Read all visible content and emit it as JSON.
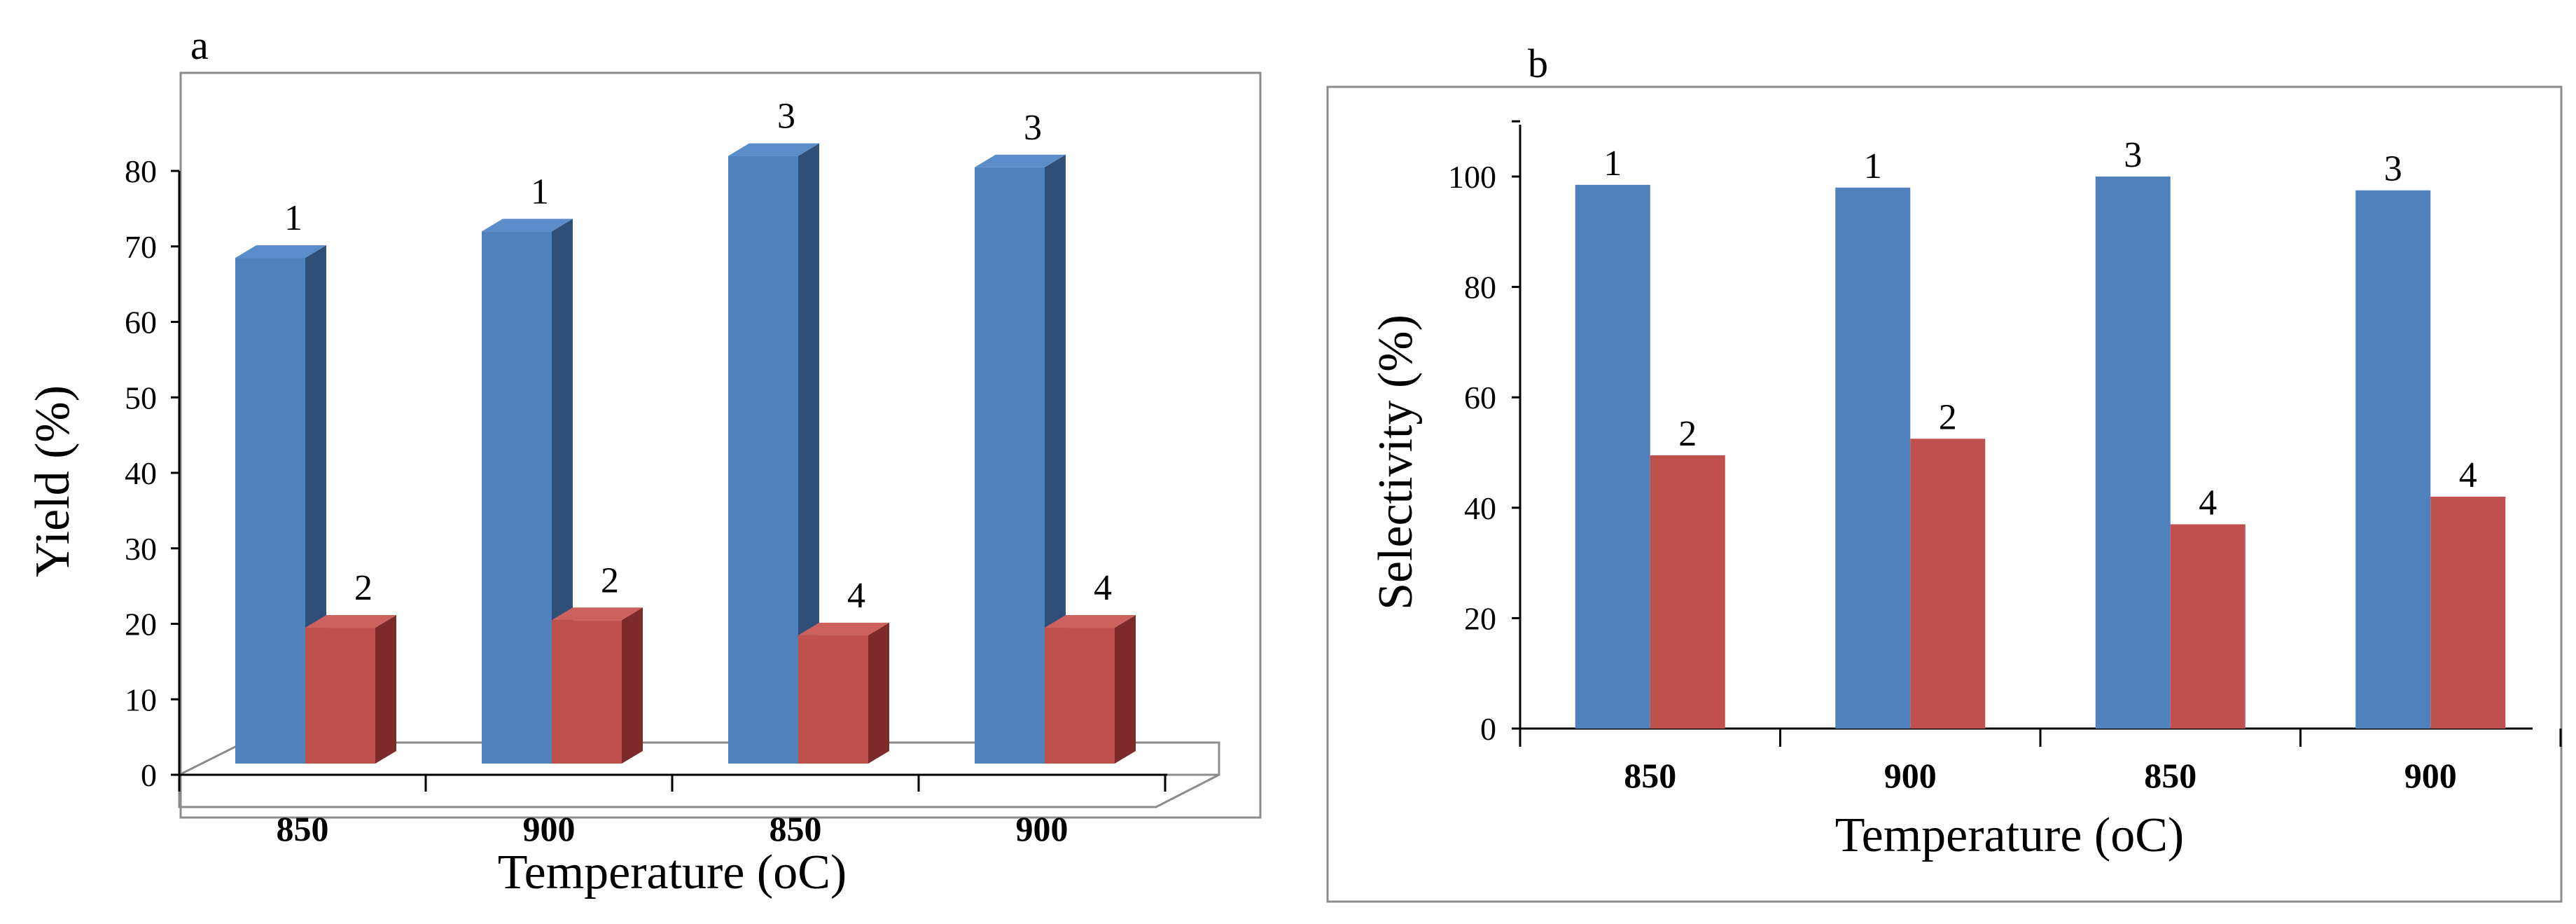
{
  "colors": {
    "blue_front": "#4f81bd",
    "blue_top": "#5b8dcb",
    "blue_side": "#2f4f78",
    "red_front": "#c0504d",
    "red_top": "#cc615d",
    "red_side": "#7c2b2a"
  },
  "chart_data": [
    {
      "panel": "a",
      "type": "bar",
      "style": "3d-clustered-column",
      "categories": [
        "850",
        "900",
        "850",
        "900"
      ],
      "xlabel": "Temperature (oC)",
      "ylabel": "Yield (%)",
      "ylim": [
        0,
        80
      ],
      "yticks": [
        "0",
        "10",
        "20",
        "30",
        "40",
        "50",
        "60",
        "70",
        "80"
      ],
      "grid": false,
      "series": [
        {
          "name": "blue",
          "color": "#4f81bd",
          "values": [
            67,
            70.5,
            80.5,
            79
          ],
          "labels": [
            "1",
            "1",
            "3",
            "3"
          ]
        },
        {
          "name": "red",
          "color": "#c0504d",
          "values": [
            18,
            19,
            17,
            18
          ],
          "labels": [
            "2",
            "2",
            "4",
            "4"
          ]
        }
      ]
    },
    {
      "panel": "b",
      "type": "bar",
      "categories": [
        "850",
        "900",
        "850",
        "900"
      ],
      "xlabel": "Temperature (oC)",
      "ylabel": "Selectivity (%)",
      "ylim": [
        0,
        110
      ],
      "yticks": [
        "0",
        "20",
        "40",
        "60",
        "80",
        "100"
      ],
      "grid": false,
      "series": [
        {
          "name": "blue",
          "color": "#4f81bd",
          "values": [
            98.5,
            98,
            100,
            97.5
          ],
          "labels": [
            "1",
            "1",
            "3",
            "3"
          ]
        },
        {
          "name": "red",
          "color": "#c0504d",
          "values": [
            49.5,
            52.5,
            37,
            42
          ],
          "labels": [
            "2",
            "2",
            "4",
            "4"
          ]
        }
      ]
    }
  ]
}
